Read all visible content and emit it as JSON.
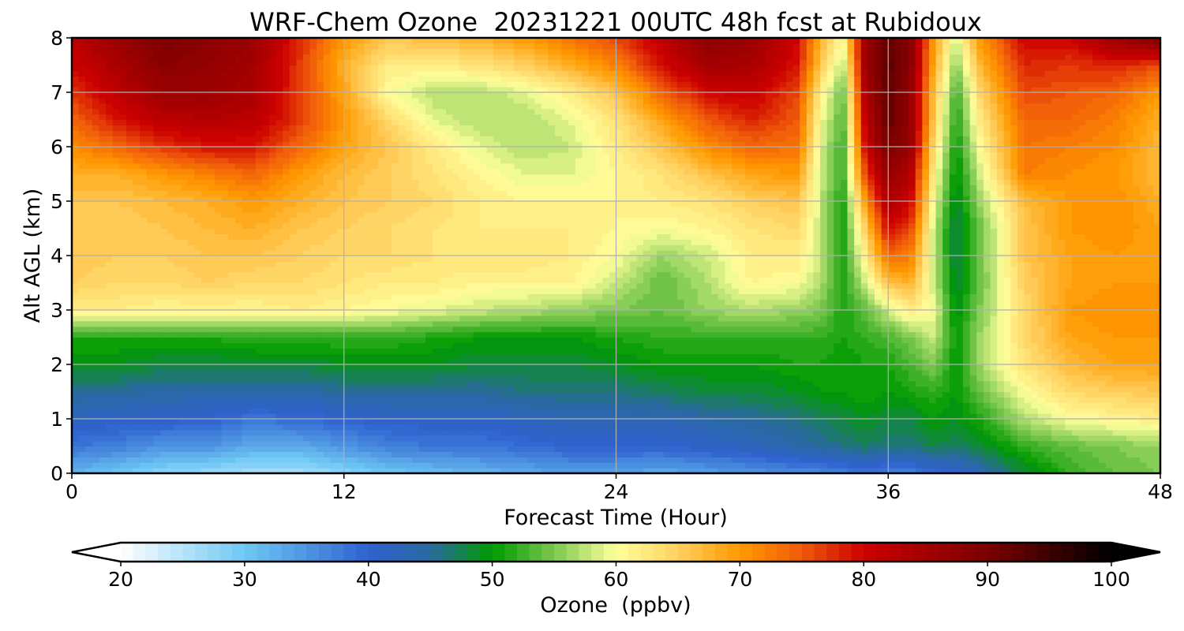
{
  "chart_data": {
    "type": "heatmap",
    "subtype": "filled-contour time-height cross section",
    "title": "WRF-Chem Ozone  20231221 00UTC 48h fcst at Rubidoux",
    "xlabel": "Forecast Time (Hour)",
    "ylabel": "Alt AGL (km)",
    "xlim": [
      0,
      48
    ],
    "ylim": [
      0,
      8
    ],
    "x_ticks": [
      0,
      12,
      24,
      36,
      48
    ],
    "y_ticks": [
      0,
      1,
      2,
      3,
      4,
      5,
      6,
      7,
      8
    ],
    "grid": true,
    "x": [
      0,
      2,
      4,
      6,
      8,
      10,
      12,
      14,
      16,
      18,
      20,
      22,
      24,
      26,
      28,
      30,
      32,
      33,
      34,
      35,
      36,
      37,
      38,
      39,
      40,
      42,
      44,
      46,
      48
    ],
    "y": [
      0,
      0.5,
      1,
      1.5,
      2,
      2.5,
      3,
      3.5,
      4,
      4.5,
      5,
      5.5,
      6,
      6.5,
      7,
      7.5,
      8
    ],
    "z_rows_by_altitude": [
      [
        32,
        30,
        28,
        27,
        26,
        26,
        28,
        30,
        31,
        32,
        33,
        34,
        34,
        33,
        34,
        35,
        36,
        36,
        37,
        38,
        37,
        37,
        39,
        40,
        43,
        48,
        52,
        54,
        55
      ],
      [
        38,
        37,
        35,
        35,
        33,
        33,
        35,
        37,
        38,
        38,
        39,
        40,
        40,
        40,
        41,
        42,
        44,
        45,
        46,
        47,
        46,
        46,
        48,
        47,
        48,
        52,
        54,
        55,
        56
      ],
      [
        42,
        41,
        41,
        40,
        38,
        39,
        40,
        41,
        41,
        41,
        42,
        43,
        43,
        43,
        44,
        45,
        46,
        47,
        48,
        49,
        48,
        48,
        50,
        49,
        51,
        57,
        60,
        61,
        62
      ],
      [
        45,
        45,
        44,
        44,
        44,
        44,
        45,
        45,
        45,
        45,
        46,
        46,
        46,
        47,
        48,
        48,
        49,
        50,
        50,
        51,
        50,
        51,
        52,
        50,
        54,
        60,
        64,
        65,
        66
      ],
      [
        49,
        49,
        48,
        48,
        48,
        48,
        49,
        49,
        49,
        48,
        48,
        48,
        49,
        50,
        50,
        50,
        51,
        51,
        50,
        51,
        51,
        53,
        55,
        50,
        56,
        63,
        67,
        69,
        69
      ],
      [
        51,
        51,
        51,
        51,
        52,
        52,
        52,
        52,
        51,
        50,
        50,
        50,
        51,
        52,
        52,
        52,
        52,
        52,
        51,
        52,
        53,
        55,
        58,
        50,
        56,
        64,
        69,
        70,
        70
      ],
      [
        62,
        62,
        61,
        61,
        61,
        62,
        61,
        60,
        59,
        58,
        57,
        56,
        55,
        54,
        56,
        57,
        56,
        55,
        51,
        54,
        58,
        62,
        60,
        49,
        55,
        64,
        70,
        71,
        71
      ],
      [
        65,
        64,
        64,
        65,
        64,
        64,
        63,
        62,
        62,
        61,
        61,
        61,
        58,
        54,
        57,
        61,
        60,
        57,
        51,
        58,
        66,
        68,
        58,
        48,
        54,
        65,
        69,
        70,
        70
      ],
      [
        66,
        65,
        65,
        66,
        66,
        65,
        64,
        64,
        63,
        63,
        63,
        62,
        60,
        56,
        58,
        62,
        62,
        58,
        51,
        62,
        74,
        72,
        58,
        47,
        54,
        66,
        69,
        70,
        69
      ],
      [
        65,
        65,
        66,
        67,
        68,
        66,
        65,
        64,
        63,
        62,
        62,
        62,
        61,
        60,
        61,
        63,
        64,
        58,
        51,
        65,
        80,
        76,
        58,
        47,
        54,
        66,
        70,
        71,
        69
      ],
      [
        66,
        66,
        67,
        68,
        70,
        68,
        66,
        65,
        64,
        62,
        61,
        61,
        61,
        62,
        63,
        65,
        66,
        58,
        51,
        70,
        84,
        80,
        60,
        48,
        56,
        67,
        70,
        71,
        68
      ],
      [
        68,
        68,
        70,
        72,
        74,
        70,
        67,
        65,
        63,
        61,
        59,
        59,
        61,
        63,
        66,
        69,
        70,
        58,
        52,
        76,
        87,
        83,
        62,
        49,
        58,
        72,
        71,
        70,
        67
      ],
      [
        71,
        74,
        77,
        79,
        79,
        74,
        69,
        66,
        62,
        59,
        57,
        58,
        62,
        66,
        71,
        74,
        73,
        59,
        52,
        80,
        90,
        86,
        64,
        50,
        60,
        73,
        72,
        71,
        67
      ],
      [
        74,
        79,
        82,
        83,
        82,
        77,
        70,
        64,
        59,
        57,
        57,
        59,
        63,
        69,
        75,
        78,
        75,
        60,
        53,
        82,
        92,
        87,
        66,
        51,
        62,
        74,
        74,
        72,
        68
      ],
      [
        77,
        82,
        86,
        86,
        84,
        77,
        69,
        60,
        57,
        57,
        59,
        62,
        66,
        74,
        80,
        81,
        76,
        62,
        54,
        84,
        92,
        87,
        67,
        52,
        64,
        76,
        75,
        74,
        70
      ],
      [
        80,
        84,
        88,
        87,
        85,
        77,
        68,
        62,
        62,
        63,
        65,
        68,
        72,
        79,
        85,
        84,
        79,
        66,
        57,
        86,
        93,
        88,
        69,
        55,
        67,
        78,
        77,
        78,
        76
      ],
      [
        82,
        86,
        90,
        88,
        86,
        78,
        70,
        66,
        67,
        68,
        70,
        73,
        76,
        82,
        88,
        86,
        80,
        68,
        60,
        86,
        92,
        88,
        70,
        58,
        70,
        80,
        80,
        86,
        90
      ]
    ],
    "colorbar": {
      "label": "Ozone  (ppbv)",
      "min": 20,
      "max": 100,
      "step": 1,
      "ticks": [
        20,
        30,
        40,
        50,
        60,
        70,
        80,
        90,
        100
      ],
      "extend": "both",
      "color_stops": [
        {
          "value": 20,
          "color": "#ffffff"
        },
        {
          "value": 30,
          "color": "#6ec8f4"
        },
        {
          "value": 40,
          "color": "#2f62cf"
        },
        {
          "value": 45,
          "color": "#2a6aa0"
        },
        {
          "value": 50,
          "color": "#009a00"
        },
        {
          "value": 55,
          "color": "#7cc850"
        },
        {
          "value": 60,
          "color": "#ffff9c"
        },
        {
          "value": 65,
          "color": "#ffd060"
        },
        {
          "value": 70,
          "color": "#ff9a00"
        },
        {
          "value": 75,
          "color": "#f05a0a"
        },
        {
          "value": 80,
          "color": "#cc0000"
        },
        {
          "value": 90,
          "color": "#7a0000"
        },
        {
          "value": 100,
          "color": "#000000"
        }
      ]
    }
  }
}
